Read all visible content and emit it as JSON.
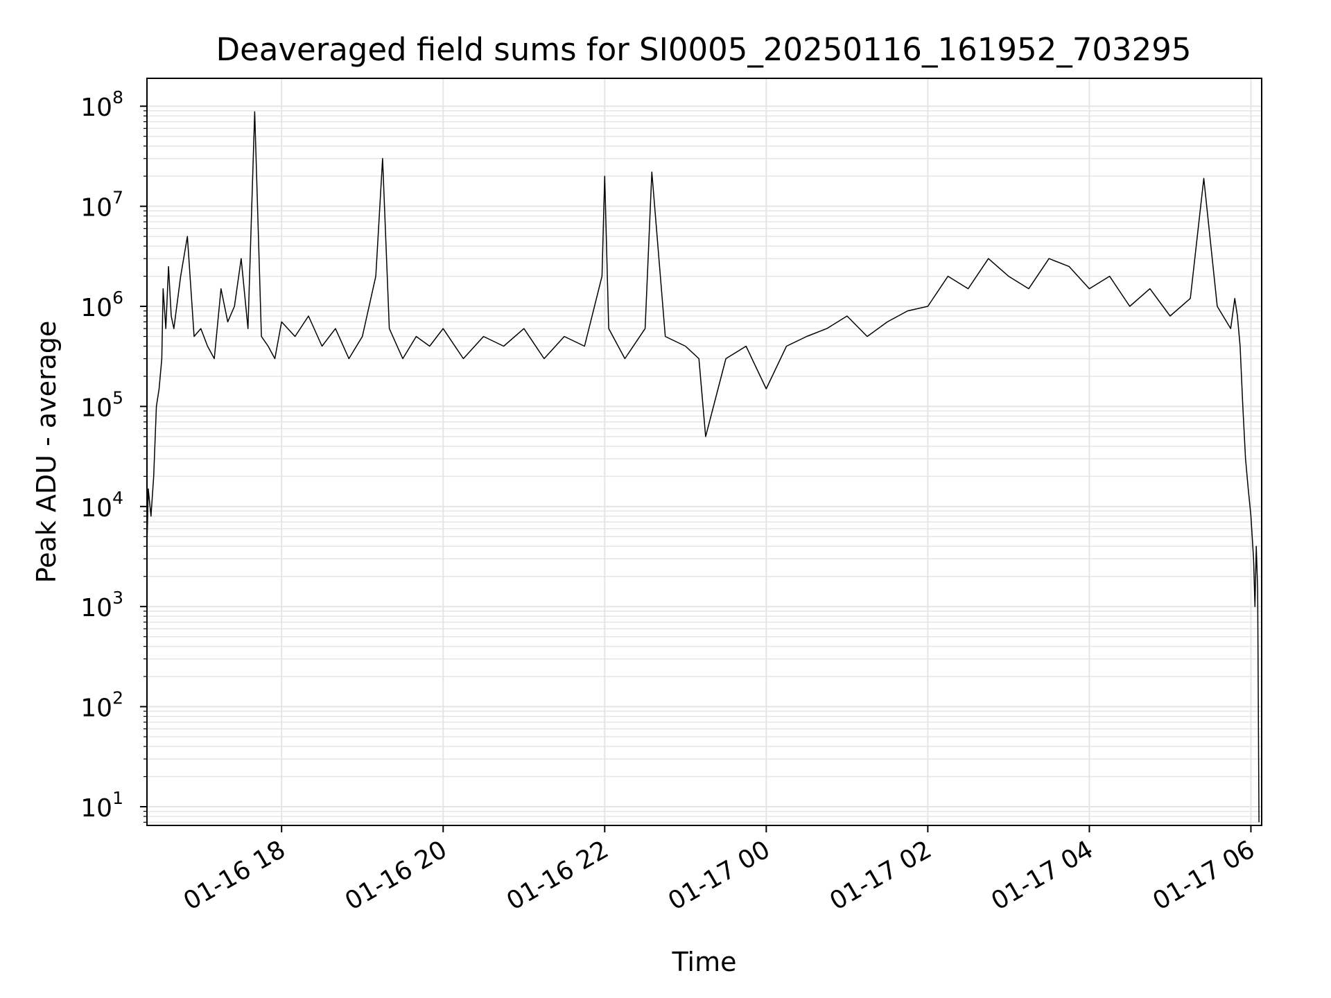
{
  "chart_data": {
    "type": "line",
    "title": "Deaveraged field sums for SI0005_20250116_161952_703295",
    "xlabel": "Time",
    "ylabel": "Peak ADU - average",
    "yscale": "log",
    "ylim": [
      6.5,
      190000000
    ],
    "xlim": [
      "2025-01-16 16:20",
      "2025-01-17 06:08"
    ],
    "grid": true,
    "line_color": "#000000",
    "grid_color": "#e5e5e5",
    "x_ticks": [
      {
        "value": "2025-01-16 18:00",
        "label": "01-16 18"
      },
      {
        "value": "2025-01-16 20:00",
        "label": "01-16 20"
      },
      {
        "value": "2025-01-16 22:00",
        "label": "01-16 22"
      },
      {
        "value": "2025-01-17 00:00",
        "label": "01-17 00"
      },
      {
        "value": "2025-01-17 02:00",
        "label": "01-17 02"
      },
      {
        "value": "2025-01-17 04:00",
        "label": "01-17 04"
      },
      {
        "value": "2025-01-17 06:00",
        "label": "01-17 06"
      }
    ],
    "y_ticks": [
      {
        "value": 10,
        "base": "10",
        "exp": "1"
      },
      {
        "value": 100,
        "base": "10",
        "exp": "2"
      },
      {
        "value": 1000,
        "base": "10",
        "exp": "3"
      },
      {
        "value": 10000,
        "base": "10",
        "exp": "4"
      },
      {
        "value": 100000,
        "base": "10",
        "exp": "5"
      },
      {
        "value": 1000000,
        "base": "10",
        "exp": "6"
      },
      {
        "value": 10000000,
        "base": "10",
        "exp": "7"
      },
      {
        "value": 100000000,
        "base": "10",
        "exp": "8"
      }
    ],
    "series": [
      {
        "x": [
          "2025-01-16 16:20",
          "2025-01-16 16:21",
          "2025-01-16 16:23",
          "2025-01-16 16:25",
          "2025-01-16 16:27",
          "2025-01-16 16:29",
          "2025-01-16 16:31",
          "2025-01-16 16:32",
          "2025-01-16 16:34",
          "2025-01-16 16:36",
          "2025-01-16 16:38",
          "2025-01-16 16:40",
          "2025-01-16 16:45",
          "2025-01-16 16:50",
          "2025-01-16 16:55",
          "2025-01-16 17:00",
          "2025-01-16 17:05",
          "2025-01-16 17:10",
          "2025-01-16 17:15",
          "2025-01-16 17:20",
          "2025-01-16 17:25",
          "2025-01-16 17:30",
          "2025-01-16 17:35",
          "2025-01-16 17:40",
          "2025-01-16 17:45",
          "2025-01-16 17:50",
          "2025-01-16 17:55",
          "2025-01-16 18:00",
          "2025-01-16 18:10",
          "2025-01-16 18:20",
          "2025-01-16 18:30",
          "2025-01-16 18:40",
          "2025-01-16 18:50",
          "2025-01-16 19:00",
          "2025-01-16 19:10",
          "2025-01-16 19:15",
          "2025-01-16 19:20",
          "2025-01-16 19:30",
          "2025-01-16 19:40",
          "2025-01-16 19:50",
          "2025-01-16 20:00",
          "2025-01-16 20:15",
          "2025-01-16 20:30",
          "2025-01-16 20:45",
          "2025-01-16 21:00",
          "2025-01-16 21:15",
          "2025-01-16 21:30",
          "2025-01-16 21:45",
          "2025-01-16 21:58",
          "2025-01-16 22:00",
          "2025-01-16 22:03",
          "2025-01-16 22:15",
          "2025-01-16 22:30",
          "2025-01-16 22:35",
          "2025-01-16 22:45",
          "2025-01-16 23:00",
          "2025-01-16 23:10",
          "2025-01-16 23:15",
          "2025-01-16 23:30",
          "2025-01-16 23:45",
          "2025-01-17 00:00",
          "2025-01-17 00:15",
          "2025-01-17 00:30",
          "2025-01-17 00:45",
          "2025-01-17 01:00",
          "2025-01-17 01:15",
          "2025-01-17 01:30",
          "2025-01-17 01:45",
          "2025-01-17 02:00",
          "2025-01-17 02:15",
          "2025-01-17 02:30",
          "2025-01-17 02:45",
          "2025-01-17 03:00",
          "2025-01-17 03:15",
          "2025-01-17 03:30",
          "2025-01-17 03:45",
          "2025-01-17 04:00",
          "2025-01-17 04:15",
          "2025-01-17 04:30",
          "2025-01-17 04:45",
          "2025-01-17 05:00",
          "2025-01-17 05:15",
          "2025-01-17 05:25",
          "2025-01-17 05:35",
          "2025-01-17 05:45",
          "2025-01-17 05:48",
          "2025-01-17 05:50",
          "2025-01-17 05:52",
          "2025-01-17 05:54",
          "2025-01-17 05:56",
          "2025-01-17 05:58",
          "2025-01-17 06:00",
          "2025-01-17 06:02",
          "2025-01-17 06:03",
          "2025-01-17 06:04",
          "2025-01-17 06:05",
          "2025-01-17 06:06"
        ],
        "y": [
          4000,
          15000,
          8000,
          20000,
          100000,
          150000,
          300000,
          1500000,
          600000,
          2500000,
          800000,
          600000,
          2000000,
          5000000,
          500000,
          600000,
          400000,
          300000,
          1500000,
          700000,
          1000000,
          3000000,
          600000,
          88000000,
          500000,
          400000,
          300000,
          700000,
          500000,
          800000,
          400000,
          600000,
          300000,
          500000,
          2000000,
          30000000,
          600000,
          300000,
          500000,
          400000,
          600000,
          300000,
          500000,
          400000,
          600000,
          300000,
          500000,
          400000,
          2000000,
          20000000,
          600000,
          300000,
          600000,
          22000000,
          500000,
          400000,
          300000,
          50000,
          300000,
          400000,
          150000,
          400000,
          500000,
          600000,
          800000,
          500000,
          700000,
          900000,
          1000000,
          2000000,
          1500000,
          3000000,
          2000000,
          1500000,
          3000000,
          2500000,
          1500000,
          2000000,
          1000000,
          1500000,
          800000,
          1200000,
          19000000,
          1000000,
          600000,
          1200000,
          800000,
          400000,
          100000,
          30000,
          15000,
          8000,
          3000,
          1000,
          4000,
          1500,
          7
        ]
      }
    ]
  }
}
